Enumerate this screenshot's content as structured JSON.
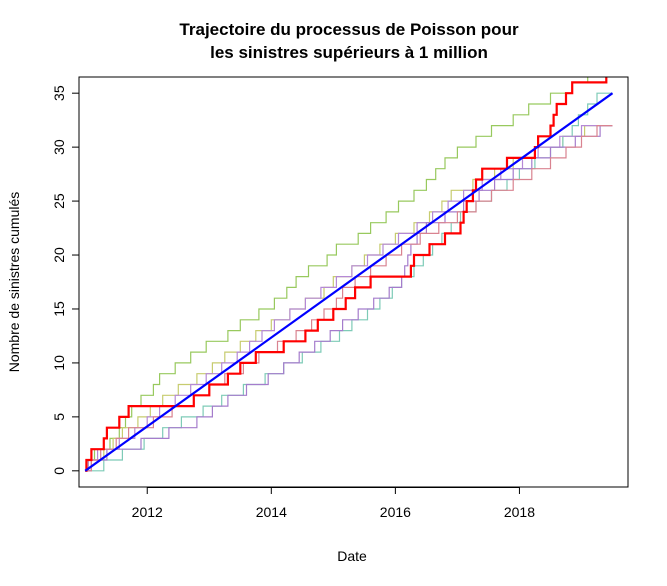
{
  "chart_data": {
    "type": "line",
    "title_line1": "Trajectoire du processus de Poisson pour",
    "title_line2": "les sinistres supérieurs à 1 million",
    "xlabel": "Date",
    "ylabel": "Nombre de sinistres cumulés",
    "xlim": [
      2010.9,
      2019.75
    ],
    "ylim": [
      -1.5,
      36.5
    ],
    "x_ticks": [
      2012,
      2014,
      2016,
      2018
    ],
    "x_tick_labels": [
      "2012",
      "2014",
      "2016",
      "2018"
    ],
    "y_ticks": [
      0,
      5,
      10,
      15,
      20,
      25,
      30,
      35
    ],
    "y_tick_labels": [
      "0",
      "5",
      "10",
      "15",
      "20",
      "25",
      "30",
      "35"
    ],
    "grid": false,
    "legend": "none",
    "mean_line": {
      "color": "#0000ff",
      "x": [
        2011.0,
        2019.5
      ],
      "y": [
        0,
        35
      ]
    },
    "observed": {
      "color": "#ff0000",
      "times": [
        2011.02,
        2011.1,
        2011.3,
        2011.35,
        2011.55,
        2011.7,
        2012.75,
        2013.0,
        2013.3,
        2013.5,
        2013.75,
        2014.2,
        2014.55,
        2014.75,
        2015.0,
        2015.2,
        2015.35,
        2015.6,
        2016.25,
        2016.3,
        2016.55,
        2016.8,
        2017.05,
        2017.1,
        2017.15,
        2017.25,
        2017.3,
        2017.4,
        2017.8,
        2018.25,
        2018.3,
        2018.5,
        2018.55,
        2018.6,
        2018.75,
        2018.85,
        2019.4,
        2019.45
      ],
      "end_x": 2019.5
    },
    "simulations": [
      {
        "color": "#98c95e",
        "times": [
          2011.05,
          2011.15,
          2011.4,
          2011.55,
          2011.65,
          2011.75,
          2011.9,
          2012.1,
          2012.2,
          2012.45,
          2012.7,
          2012.95,
          2013.3,
          2013.5,
          2013.8,
          2014.05,
          2014.25,
          2014.4,
          2014.6,
          2014.9,
          2015.05,
          2015.4,
          2015.6,
          2015.85,
          2016.05,
          2016.3,
          2016.5,
          2016.65,
          2016.8,
          2017.0,
          2017.3,
          2017.55,
          2017.9,
          2018.15,
          2018.5,
          2018.85,
          2019.1,
          2019.3
        ],
        "end_x": 2019.5
      },
      {
        "color": "#c7cc6f",
        "times": [
          2011.1,
          2011.3,
          2011.45,
          2011.6,
          2011.85,
          2012.05,
          2012.25,
          2012.5,
          2012.8,
          2013.05,
          2013.25,
          2013.5,
          2013.75,
          2014.0,
          2014.3,
          2014.55,
          2014.85,
          2015.0,
          2015.3,
          2015.5,
          2015.75,
          2016.0,
          2016.3,
          2016.55,
          2016.75,
          2016.9,
          2017.25,
          2017.6,
          2017.9,
          2018.25,
          2018.7,
          2019.05
        ],
        "end_x": 2019.5
      },
      {
        "color": "#7ecbb7",
        "times": [
          2011.3,
          2011.6,
          2011.95,
          2012.25,
          2012.55,
          2012.9,
          2013.2,
          2013.55,
          2013.9,
          2014.2,
          2014.5,
          2014.8,
          2015.1,
          2015.3,
          2015.55,
          2015.75,
          2015.95,
          2016.1,
          2016.3,
          2016.45,
          2016.6,
          2016.75,
          2016.9,
          2017.05,
          2017.3,
          2017.55,
          2017.8,
          2018.0,
          2018.25,
          2018.5,
          2018.7,
          2018.85,
          2018.95,
          2019.1,
          2019.25
        ],
        "end_x": 2019.5
      },
      {
        "color": "#b589d6",
        "times": [
          2011.05,
          2011.2,
          2011.55,
          2011.8,
          2012.0,
          2012.2,
          2012.45,
          2012.7,
          2012.95,
          2013.2,
          2013.45,
          2013.65,
          2013.85,
          2014.05,
          2014.3,
          2014.55,
          2014.8,
          2015.05,
          2015.3,
          2015.55,
          2015.8,
          2016.05,
          2016.35,
          2016.6,
          2016.85,
          2017.1,
          2017.4,
          2017.7,
          2018.05,
          2018.3,
          2018.65,
          2019.0
        ],
        "end_x": 2019.5
      },
      {
        "color": "#a57ccc",
        "times": [
          2011.1,
          2011.35,
          2011.9,
          2012.35,
          2012.8,
          2013.05,
          2013.3,
          2013.6,
          2013.95,
          2014.2,
          2014.45,
          2014.7,
          2014.95,
          2015.15,
          2015.4,
          2015.65,
          2015.9,
          2016.1,
          2016.15,
          2016.2,
          2016.25,
          2016.35,
          2016.5,
          2016.8,
          2017.1,
          2017.35,
          2017.6,
          2017.9,
          2018.2,
          2018.5,
          2018.9,
          2019.3
        ],
        "end_x": 2019.5
      },
      {
        "color": "#d98390",
        "times": [
          2011.1,
          2011.25,
          2011.5,
          2011.7,
          2012.1,
          2012.4,
          2012.75,
          2013.0,
          2013.25,
          2013.55,
          2013.8,
          2014.1,
          2014.4,
          2014.65,
          2014.85,
          2015.05,
          2015.15,
          2015.35,
          2015.6,
          2015.85,
          2016.1,
          2016.4,
          2016.7,
          2017.0,
          2017.3,
          2017.55,
          2017.9,
          2018.2,
          2018.5,
          2018.75,
          2019.0,
          2019.25
        ],
        "end_x": 2019.5
      }
    ]
  }
}
